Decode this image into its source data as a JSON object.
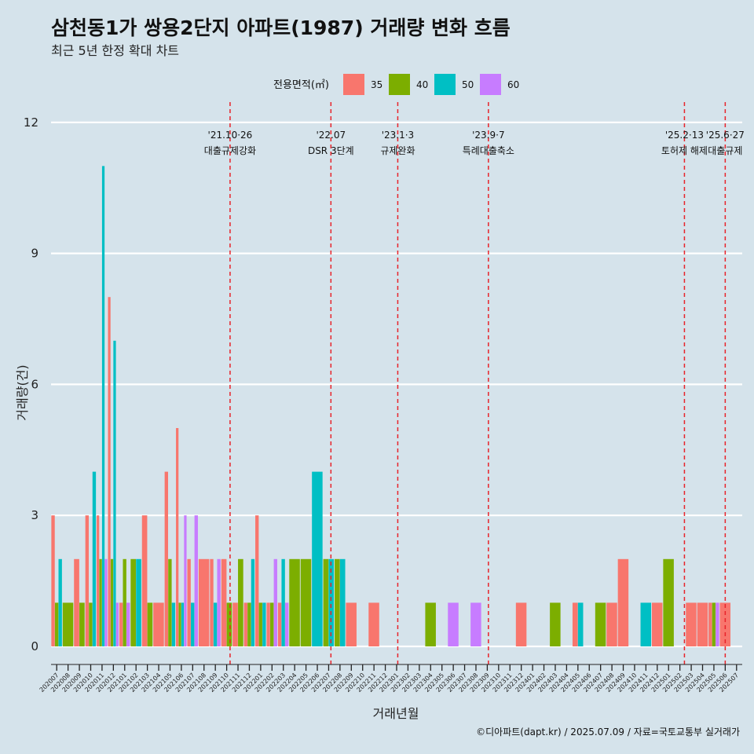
{
  "chart_data": {
    "type": "bar",
    "title": "삼천동1가 쌍용2단지 아파트(1987) 거래량 변화 흐름",
    "subtitle": "최근 5년 한정 확대 차트",
    "xlabel": "거래년월",
    "ylabel": "거래량(건)",
    "ylim": [
      0,
      12
    ],
    "yticks": [
      0,
      3,
      6,
      9,
      12
    ],
    "legend_title": "전용면적(㎡)",
    "caption": "©디아파트(dapt.kr) / 2025.07.09 / 자료=국토교통부 실거래가",
    "categories": [
      "202007",
      "202008",
      "202009",
      "202010",
      "202011",
      "202012",
      "202101",
      "202102",
      "202103",
      "202104",
      "202105",
      "202106",
      "202107",
      "202108",
      "202109",
      "202110",
      "202111",
      "202112",
      "202201",
      "202202",
      "202203",
      "202204",
      "202205",
      "202206",
      "202207",
      "202208",
      "202209",
      "202210",
      "202211",
      "202212",
      "202301",
      "202302",
      "202303",
      "202304",
      "202305",
      "202306",
      "202307",
      "202308",
      "202309",
      "202310",
      "202311",
      "202312",
      "202401",
      "202402",
      "202403",
      "202404",
      "202405",
      "202406",
      "202407",
      "202408",
      "202409",
      "202410",
      "202411",
      "202412",
      "202501",
      "202502",
      "202503",
      "202504",
      "202505",
      "202506",
      "202507"
    ],
    "series": [
      {
        "name": "35",
        "color": "#f8766d",
        "values": [
          3,
          0,
          2,
          3,
          3,
          8,
          1,
          0,
          3,
          1,
          4,
          5,
          2,
          2,
          2,
          2,
          1,
          1,
          3,
          1,
          1,
          0,
          0,
          0,
          0,
          0,
          1,
          0,
          1,
          0,
          0,
          0,
          0,
          0,
          0,
          0,
          0,
          0,
          0,
          0,
          0,
          1,
          0,
          0,
          0,
          0,
          1,
          0,
          0,
          1,
          2,
          0,
          0,
          1,
          0,
          0,
          1,
          1,
          1,
          1,
          0
        ]
      },
      {
        "name": "40",
        "color": "#7cae00",
        "values": [
          1,
          1,
          1,
          1,
          2,
          2,
          2,
          2,
          1,
          0,
          2,
          1,
          0,
          0,
          0,
          1,
          2,
          1,
          1,
          1,
          0,
          2,
          2,
          0,
          2,
          2,
          0,
          0,
          0,
          0,
          0,
          0,
          0,
          1,
          0,
          0,
          0,
          0,
          0,
          0,
          0,
          0,
          0,
          0,
          1,
          0,
          0,
          0,
          1,
          0,
          0,
          0,
          0,
          0,
          2,
          0,
          0,
          0,
          1,
          0,
          0
        ]
      },
      {
        "name": "50",
        "color": "#00bfc4",
        "values": [
          2,
          0,
          0,
          4,
          11,
          7,
          0,
          2,
          0,
          0,
          1,
          1,
          1,
          0,
          1,
          0,
          0,
          2,
          1,
          0,
          2,
          0,
          0,
          4,
          2,
          2,
          0,
          0,
          0,
          0,
          0,
          0,
          0,
          0,
          0,
          0,
          0,
          0,
          0,
          0,
          0,
          0,
          0,
          0,
          0,
          0,
          1,
          0,
          0,
          0,
          0,
          0,
          1,
          0,
          0,
          0,
          0,
          0,
          0,
          0,
          0
        ]
      },
      {
        "name": "60",
        "color": "#c77cff",
        "values": [
          0,
          0,
          0,
          0,
          2,
          1,
          1,
          0,
          0,
          0,
          0,
          3,
          3,
          0,
          2,
          0,
          0,
          0,
          0,
          2,
          1,
          0,
          0,
          0,
          0,
          0,
          0,
          0,
          0,
          0,
          0,
          0,
          0,
          0,
          0,
          1,
          0,
          1,
          0,
          0,
          0,
          0,
          0,
          0,
          0,
          0,
          0,
          0,
          0,
          0,
          0,
          0,
          0,
          0,
          0,
          0,
          0,
          0,
          1,
          0,
          0
        ]
      }
    ],
    "annotations": [
      {
        "date": "'21.10·26",
        "label": "대출규제강화",
        "x": 15.3
      },
      {
        "date": "'22.07",
        "label": "DSR 3단계",
        "x": 24.2
      },
      {
        "date": "'23.1·3",
        "label": "규제완화",
        "x": 30.1
      },
      {
        "date": "'23.9·7",
        "label": "특례대출축소",
        "x": 38.1
      },
      {
        "date": "'25.2·13",
        "label": "토허제 해제",
        "x": 55.4
      },
      {
        "date": "'25.6·27",
        "label": "대출규제",
        "x": 59.0
      }
    ]
  }
}
